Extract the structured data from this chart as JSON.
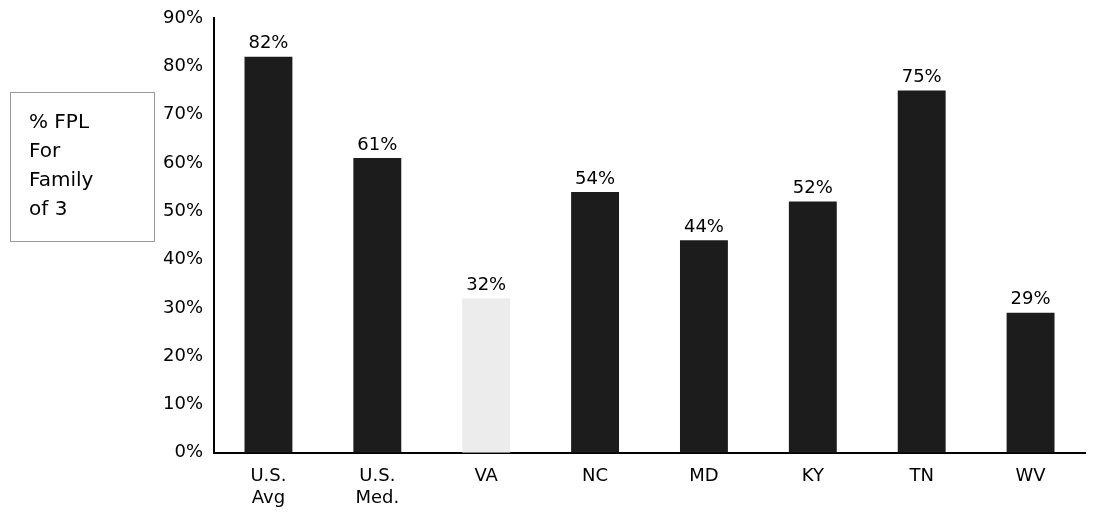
{
  "chart_data": {
    "type": "bar",
    "ylabel": "% FPL For Family of 3",
    "categories": [
      "U.S. Avg",
      "U.S. Med.",
      "VA",
      "NC",
      "MD",
      "KY",
      "TN",
      "WV"
    ],
    "values": [
      82,
      61,
      32,
      54,
      44,
      52,
      75,
      29
    ],
    "colors": [
      "#1c1c1c",
      "#1c1c1c",
      "#ececec",
      "#1c1c1c",
      "#1c1c1c",
      "#1c1c1c",
      "#1c1c1c",
      "#1c1c1c"
    ],
    "value_labels": [
      "82%",
      "61%",
      "32%",
      "54%",
      "44%",
      "52%",
      "75%",
      "29%"
    ],
    "ylim": [
      0,
      90
    ],
    "yticks": [
      {
        "value": 0,
        "label": "0%"
      },
      {
        "value": 10,
        "label": "10%"
      },
      {
        "value": 20,
        "label": "20%"
      },
      {
        "value": 30,
        "label": "30%"
      },
      {
        "value": 40,
        "label": "40%"
      },
      {
        "value": 50,
        "label": "50%"
      },
      {
        "value": 60,
        "label": "60%"
      },
      {
        "value": 70,
        "label": "70%"
      },
      {
        "value": 80,
        "label": "80%"
      },
      {
        "value": 90,
        "label": "90%"
      }
    ],
    "grid": false,
    "legend": false
  }
}
